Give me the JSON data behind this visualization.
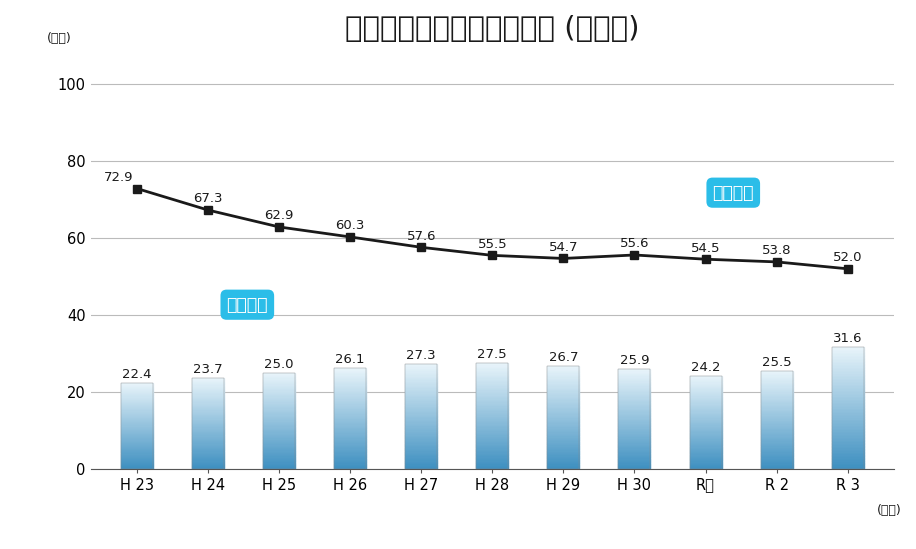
{
  "title_display": "借金残高と預金残高の推移 (全会計)",
  "ylabel": "(億円)",
  "xlabel_suffix": "(年度)",
  "categories": [
    "H 23",
    "H 24",
    "H 25",
    "H 26",
    "H 27",
    "H 28",
    "H 29",
    "H 30",
    "R元",
    "R 2",
    "R 3"
  ],
  "loan_values": [
    72.9,
    67.3,
    62.9,
    60.3,
    57.6,
    55.5,
    54.7,
    55.6,
    54.5,
    53.8,
    52.0
  ],
  "deposit_values": [
    22.4,
    23.7,
    25.0,
    26.1,
    27.3,
    27.5,
    26.7,
    25.9,
    24.2,
    25.5,
    31.6
  ],
  "loan_label": "借金残高",
  "deposit_label": "預金残高",
  "ylim": [
    0,
    108
  ],
  "yticks": [
    0,
    20,
    40,
    60,
    80,
    100
  ],
  "bar_color_top": "#e8f4fa",
  "bar_color_bottom": "#3d8fc0",
  "line_color": "#1a1a1a",
  "line_marker": "s",
  "background_color": "#ffffff",
  "grid_color": "#bbbbbb",
  "label_bg_color": "#2bbde8",
  "label_text_color": "#ffffff",
  "value_fontsize": 9.5,
  "title_fontsize": 21,
  "axis_label_fontsize": 9,
  "tick_fontsize": 10.5,
  "bar_width": 0.45
}
